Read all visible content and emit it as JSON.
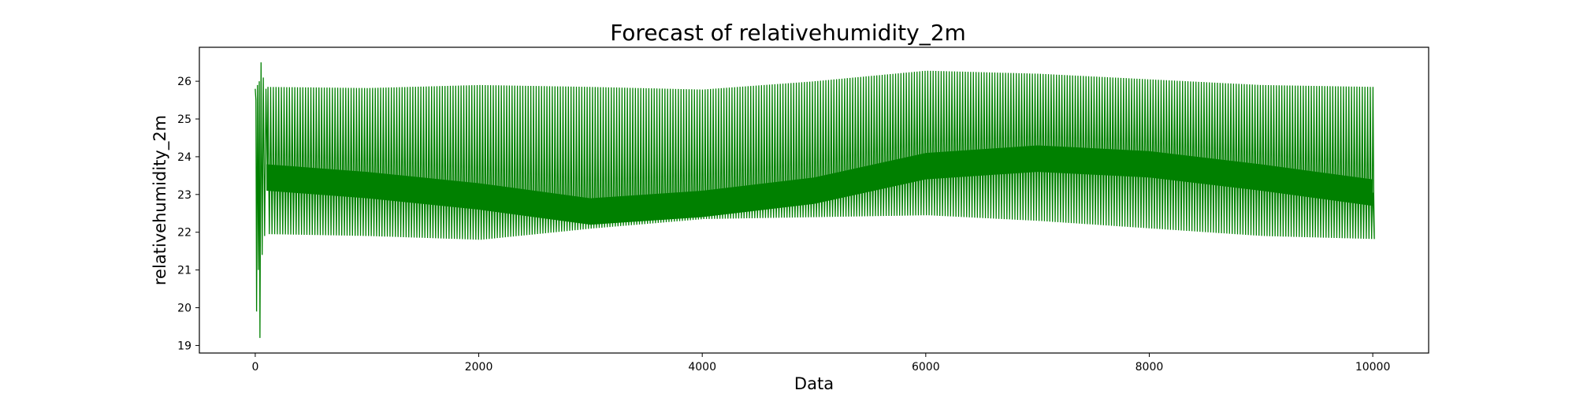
{
  "chart_data": {
    "type": "line",
    "title": "Forecast of relativehumidity_2m",
    "xlabel": "Data",
    "ylabel": "relativehumidity_2m",
    "xlim": [
      -500,
      10500
    ],
    "ylim": [
      18.8,
      26.9
    ],
    "x_ticks": [
      0,
      2000,
      4000,
      6000,
      8000,
      10000
    ],
    "y_ticks": [
      19,
      20,
      21,
      22,
      23,
      24,
      25,
      26
    ],
    "grid": false,
    "legend": "none",
    "series": [
      {
        "color": "#008000",
        "x_range": [
          0,
          10000
        ],
        "cycle_length": 24,
        "initial_spikes": [
          {
            "x": 0,
            "y": 25.8
          },
          {
            "x": 6,
            "y": 25.5
          },
          {
            "x": 12,
            "y": 19.9
          },
          {
            "x": 20,
            "y": 25.9
          },
          {
            "x": 28,
            "y": 21.0
          },
          {
            "x": 36,
            "y": 26.0
          },
          {
            "x": 42,
            "y": 19.2
          },
          {
            "x": 52,
            "y": 26.5
          },
          {
            "x": 62,
            "y": 21.4
          },
          {
            "x": 72,
            "y": 26.1
          },
          {
            "x": 84,
            "y": 21.9
          },
          {
            "x": 96,
            "y": 25.8
          }
        ],
        "upper_envelope": [
          [
            100,
            25.85
          ],
          [
            1000,
            25.82
          ],
          [
            2000,
            25.9
          ],
          [
            3000,
            25.85
          ],
          [
            4000,
            25.78
          ],
          [
            5000,
            26.0
          ],
          [
            6000,
            26.28
          ],
          [
            7000,
            26.2
          ],
          [
            8000,
            26.05
          ],
          [
            9000,
            25.9
          ],
          [
            10000,
            25.85
          ]
        ],
        "lower_envelope": [
          [
            100,
            21.95
          ],
          [
            1000,
            21.9
          ],
          [
            2000,
            21.8
          ],
          [
            3000,
            22.1
          ],
          [
            4000,
            22.35
          ],
          [
            5000,
            22.4
          ],
          [
            6000,
            22.45
          ],
          [
            7000,
            22.3
          ],
          [
            8000,
            22.1
          ],
          [
            9000,
            21.9
          ],
          [
            10000,
            21.82
          ]
        ],
        "mean_band": [
          [
            100,
            23.45
          ],
          [
            1000,
            23.25
          ],
          [
            2000,
            22.95
          ],
          [
            3000,
            22.55
          ],
          [
            4000,
            22.75
          ],
          [
            5000,
            23.1
          ],
          [
            6000,
            23.75
          ],
          [
            7000,
            23.95
          ],
          [
            8000,
            23.8
          ],
          [
            9000,
            23.45
          ],
          [
            10000,
            23.05
          ]
        ]
      }
    ]
  }
}
